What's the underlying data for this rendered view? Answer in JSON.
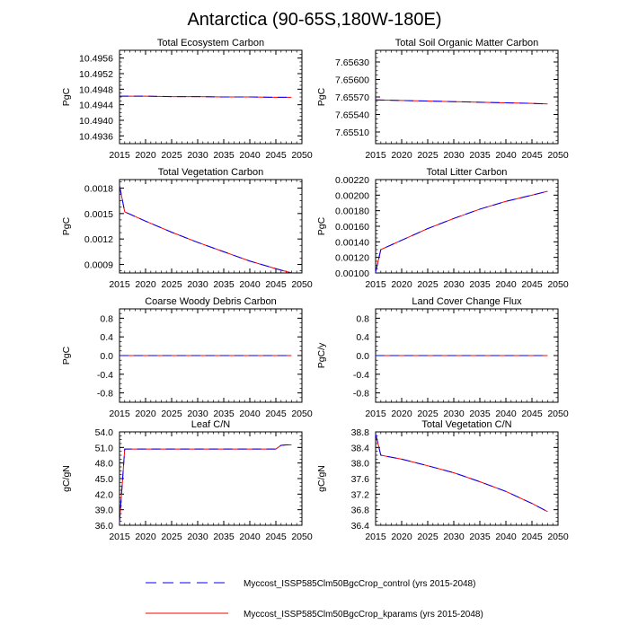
{
  "page_title": "Antarctica (90-65S,180W-180E)",
  "legend": [
    {
      "label": "Myccost_ISSP585Clm50BgcCrop_control (yrs 2015-2048)",
      "color": "#0000ff",
      "dash": "dashed"
    },
    {
      "label": "Myccost_ISSP585Clm50BgcCrop_kparams (yrs 2015-2048)",
      "color": "#ff0000",
      "dash": "solid"
    }
  ],
  "chart_data": [
    {
      "type": "line",
      "title": "Total Ecosystem Carbon",
      "ylabel": "PgC",
      "xlim": [
        2015,
        2050
      ],
      "xticks": [
        2015,
        2020,
        2025,
        2030,
        2035,
        2040,
        2045,
        2050
      ],
      "ylim": [
        10.4934,
        10.4958
      ],
      "yticks": [
        10.4936,
        10.494,
        10.4944,
        10.4948,
        10.4952,
        10.4956
      ],
      "ytick_labels": [
        "10.4936",
        "10.4940",
        "10.4944",
        "10.4948",
        "10.4952",
        "10.4956"
      ],
      "series": [
        {
          "x": [
            2015,
            2020,
            2025,
            2030,
            2035,
            2040,
            2045,
            2048
          ],
          "values": [
            10.49462,
            10.49462,
            10.49461,
            10.49461,
            10.4946,
            10.4946,
            10.49459,
            10.49459
          ]
        },
        {
          "x": [
            2015,
            2020,
            2025,
            2030,
            2035,
            2040,
            2045,
            2048
          ],
          "values": [
            10.49462,
            10.49462,
            10.49461,
            10.49461,
            10.4946,
            10.4946,
            10.49459,
            10.49459
          ]
        }
      ]
    },
    {
      "type": "line",
      "title": "Total Soil Organic Matter Carbon",
      "ylabel": "PgC",
      "xlim": [
        2015,
        2050
      ],
      "xticks": [
        2015,
        2020,
        2025,
        2030,
        2035,
        2040,
        2045,
        2050
      ],
      "ylim": [
        7.6549,
        7.6565
      ],
      "yticks": [
        7.6551,
        7.6554,
        7.6557,
        7.656,
        7.6563
      ],
      "ytick_labels": [
        "7.65510",
        "7.65540",
        "7.65570",
        "7.65600",
        "7.65630"
      ],
      "series": [
        {
          "x": [
            2015,
            2020,
            2025,
            2030,
            2035,
            2040,
            2045,
            2048
          ],
          "values": [
            7.65565,
            7.65564,
            7.65563,
            7.65562,
            7.65561,
            7.6556,
            7.65559,
            7.65558
          ]
        },
        {
          "x": [
            2015,
            2020,
            2025,
            2030,
            2035,
            2040,
            2045,
            2048
          ],
          "values": [
            7.65565,
            7.65564,
            7.65563,
            7.65562,
            7.65561,
            7.6556,
            7.65559,
            7.65558
          ]
        }
      ]
    },
    {
      "type": "line",
      "title": "Total Vegetation Carbon",
      "ylabel": "PgC",
      "xlim": [
        2015,
        2050
      ],
      "xticks": [
        2015,
        2020,
        2025,
        2030,
        2035,
        2040,
        2045,
        2050
      ],
      "ylim": [
        0.0008,
        0.0019
      ],
      "yticks": [
        0.0009,
        0.0012,
        0.0015,
        0.0018
      ],
      "ytick_labels": [
        "0.0009",
        "0.0012",
        "0.0015",
        "0.0018"
      ],
      "series": [
        {
          "x": [
            2015,
            2016,
            2020,
            2025,
            2030,
            2035,
            2040,
            2045,
            2048
          ],
          "values": [
            0.00183,
            0.00152,
            0.00141,
            0.00128,
            0.00116,
            0.00105,
            0.00094,
            0.00085,
            0.0008
          ]
        },
        {
          "x": [
            2015,
            2016,
            2020,
            2025,
            2030,
            2035,
            2040,
            2045,
            2048
          ],
          "values": [
            0.00183,
            0.00152,
            0.00141,
            0.00128,
            0.00116,
            0.00105,
            0.00094,
            0.00085,
            0.0008
          ]
        }
      ]
    },
    {
      "type": "line",
      "title": "Total Litter Carbon",
      "ylabel": "PgC",
      "xlim": [
        2015,
        2050
      ],
      "xticks": [
        2015,
        2020,
        2025,
        2030,
        2035,
        2040,
        2045,
        2050
      ],
      "ylim": [
        0.001,
        0.0022
      ],
      "yticks": [
        0.001,
        0.0012,
        0.0014,
        0.0016,
        0.0018,
        0.002,
        0.0022
      ],
      "ytick_labels": [
        "0.00100",
        "0.00120",
        "0.00140",
        "0.00160",
        "0.00180",
        "0.00200",
        "0.00220"
      ],
      "series": [
        {
          "x": [
            2015,
            2016,
            2020,
            2025,
            2030,
            2035,
            2040,
            2045,
            2048
          ],
          "values": [
            0.00101,
            0.0013,
            0.00142,
            0.00157,
            0.0017,
            0.00182,
            0.00192,
            0.002,
            0.00205
          ]
        },
        {
          "x": [
            2015,
            2016,
            2020,
            2025,
            2030,
            2035,
            2040,
            2045,
            2048
          ],
          "values": [
            0.00101,
            0.0013,
            0.00142,
            0.00157,
            0.0017,
            0.00182,
            0.00192,
            0.002,
            0.00205
          ]
        }
      ]
    },
    {
      "type": "line",
      "title": "Coarse Woody Debris Carbon",
      "ylabel": "PgC",
      "xlim": [
        2015,
        2050
      ],
      "xticks": [
        2015,
        2020,
        2025,
        2030,
        2035,
        2040,
        2045,
        2050
      ],
      "ylim": [
        -1.0,
        1.0
      ],
      "yticks": [
        -0.8,
        -0.4,
        0.0,
        0.4,
        0.8
      ],
      "ytick_labels": [
        "-0.8",
        "-0.4",
        "0.0",
        "0.4",
        "0.8"
      ],
      "series": [
        {
          "x": [
            2015,
            2048
          ],
          "values": [
            0.0,
            0.0
          ]
        },
        {
          "x": [
            2015,
            2048
          ],
          "values": [
            0.0,
            0.0
          ]
        }
      ]
    },
    {
      "type": "line",
      "title": "Land Cover Change Flux",
      "ylabel": "PgC/y",
      "xlim": [
        2015,
        2050
      ],
      "xticks": [
        2015,
        2020,
        2025,
        2030,
        2035,
        2040,
        2045,
        2050
      ],
      "ylim": [
        -1.0,
        1.0
      ],
      "yticks": [
        -0.8,
        -0.4,
        0.0,
        0.4,
        0.8
      ],
      "ytick_labels": [
        "-0.8",
        "-0.4",
        "0.0",
        "0.4",
        "0.8"
      ],
      "series": [
        {
          "x": [
            2015,
            2048
          ],
          "values": [
            0.0,
            0.0
          ]
        },
        {
          "x": [
            2015,
            2048
          ],
          "values": [
            0.0,
            0.0
          ]
        }
      ]
    },
    {
      "type": "line",
      "title": "Leaf C/N",
      "ylabel": "gC/gN",
      "xlim": [
        2015,
        2050
      ],
      "xticks": [
        2015,
        2020,
        2025,
        2030,
        2035,
        2040,
        2045,
        2050
      ],
      "ylim": [
        36.0,
        54.0
      ],
      "yticks": [
        36.0,
        39.0,
        42.0,
        45.0,
        48.0,
        51.0,
        54.0
      ],
      "ytick_labels": [
        "36.0",
        "39.0",
        "42.0",
        "45.0",
        "48.0",
        "51.0",
        "54.0"
      ],
      "series": [
        {
          "x": [
            2015,
            2016,
            2020,
            2025,
            2030,
            2035,
            2040,
            2045,
            2046,
            2047,
            2048
          ],
          "values": [
            36.5,
            50.7,
            50.7,
            50.7,
            50.7,
            50.7,
            50.7,
            50.7,
            51.4,
            51.5,
            51.5
          ]
        },
        {
          "x": [
            2015,
            2016,
            2020,
            2025,
            2030,
            2035,
            2040,
            2045,
            2046,
            2047,
            2048
          ],
          "values": [
            36.5,
            50.7,
            50.7,
            50.7,
            50.7,
            50.7,
            50.7,
            50.7,
            51.4,
            51.5,
            51.5
          ]
        }
      ]
    },
    {
      "type": "line",
      "title": "Total Vegetation C/N",
      "ylabel": "gC/gN",
      "xlim": [
        2015,
        2050
      ],
      "xticks": [
        2015,
        2020,
        2025,
        2030,
        2035,
        2040,
        2045,
        2050
      ],
      "ylim": [
        36.4,
        38.8
      ],
      "yticks": [
        36.4,
        36.8,
        37.2,
        37.6,
        38.0,
        38.4,
        38.8
      ],
      "ytick_labels": [
        "36.4",
        "36.8",
        "37.2",
        "37.6",
        "38.0",
        "38.4",
        "38.8"
      ],
      "series": [
        {
          "x": [
            2015,
            2016,
            2020,
            2025,
            2030,
            2035,
            2040,
            2045,
            2048
          ],
          "values": [
            38.75,
            38.2,
            38.1,
            37.93,
            37.75,
            37.52,
            37.27,
            36.96,
            36.75
          ]
        },
        {
          "x": [
            2015,
            2016,
            2020,
            2025,
            2030,
            2035,
            2040,
            2045,
            2048
          ],
          "values": [
            38.75,
            38.2,
            38.1,
            37.93,
            37.75,
            37.52,
            37.27,
            36.96,
            36.75
          ]
        }
      ]
    }
  ]
}
